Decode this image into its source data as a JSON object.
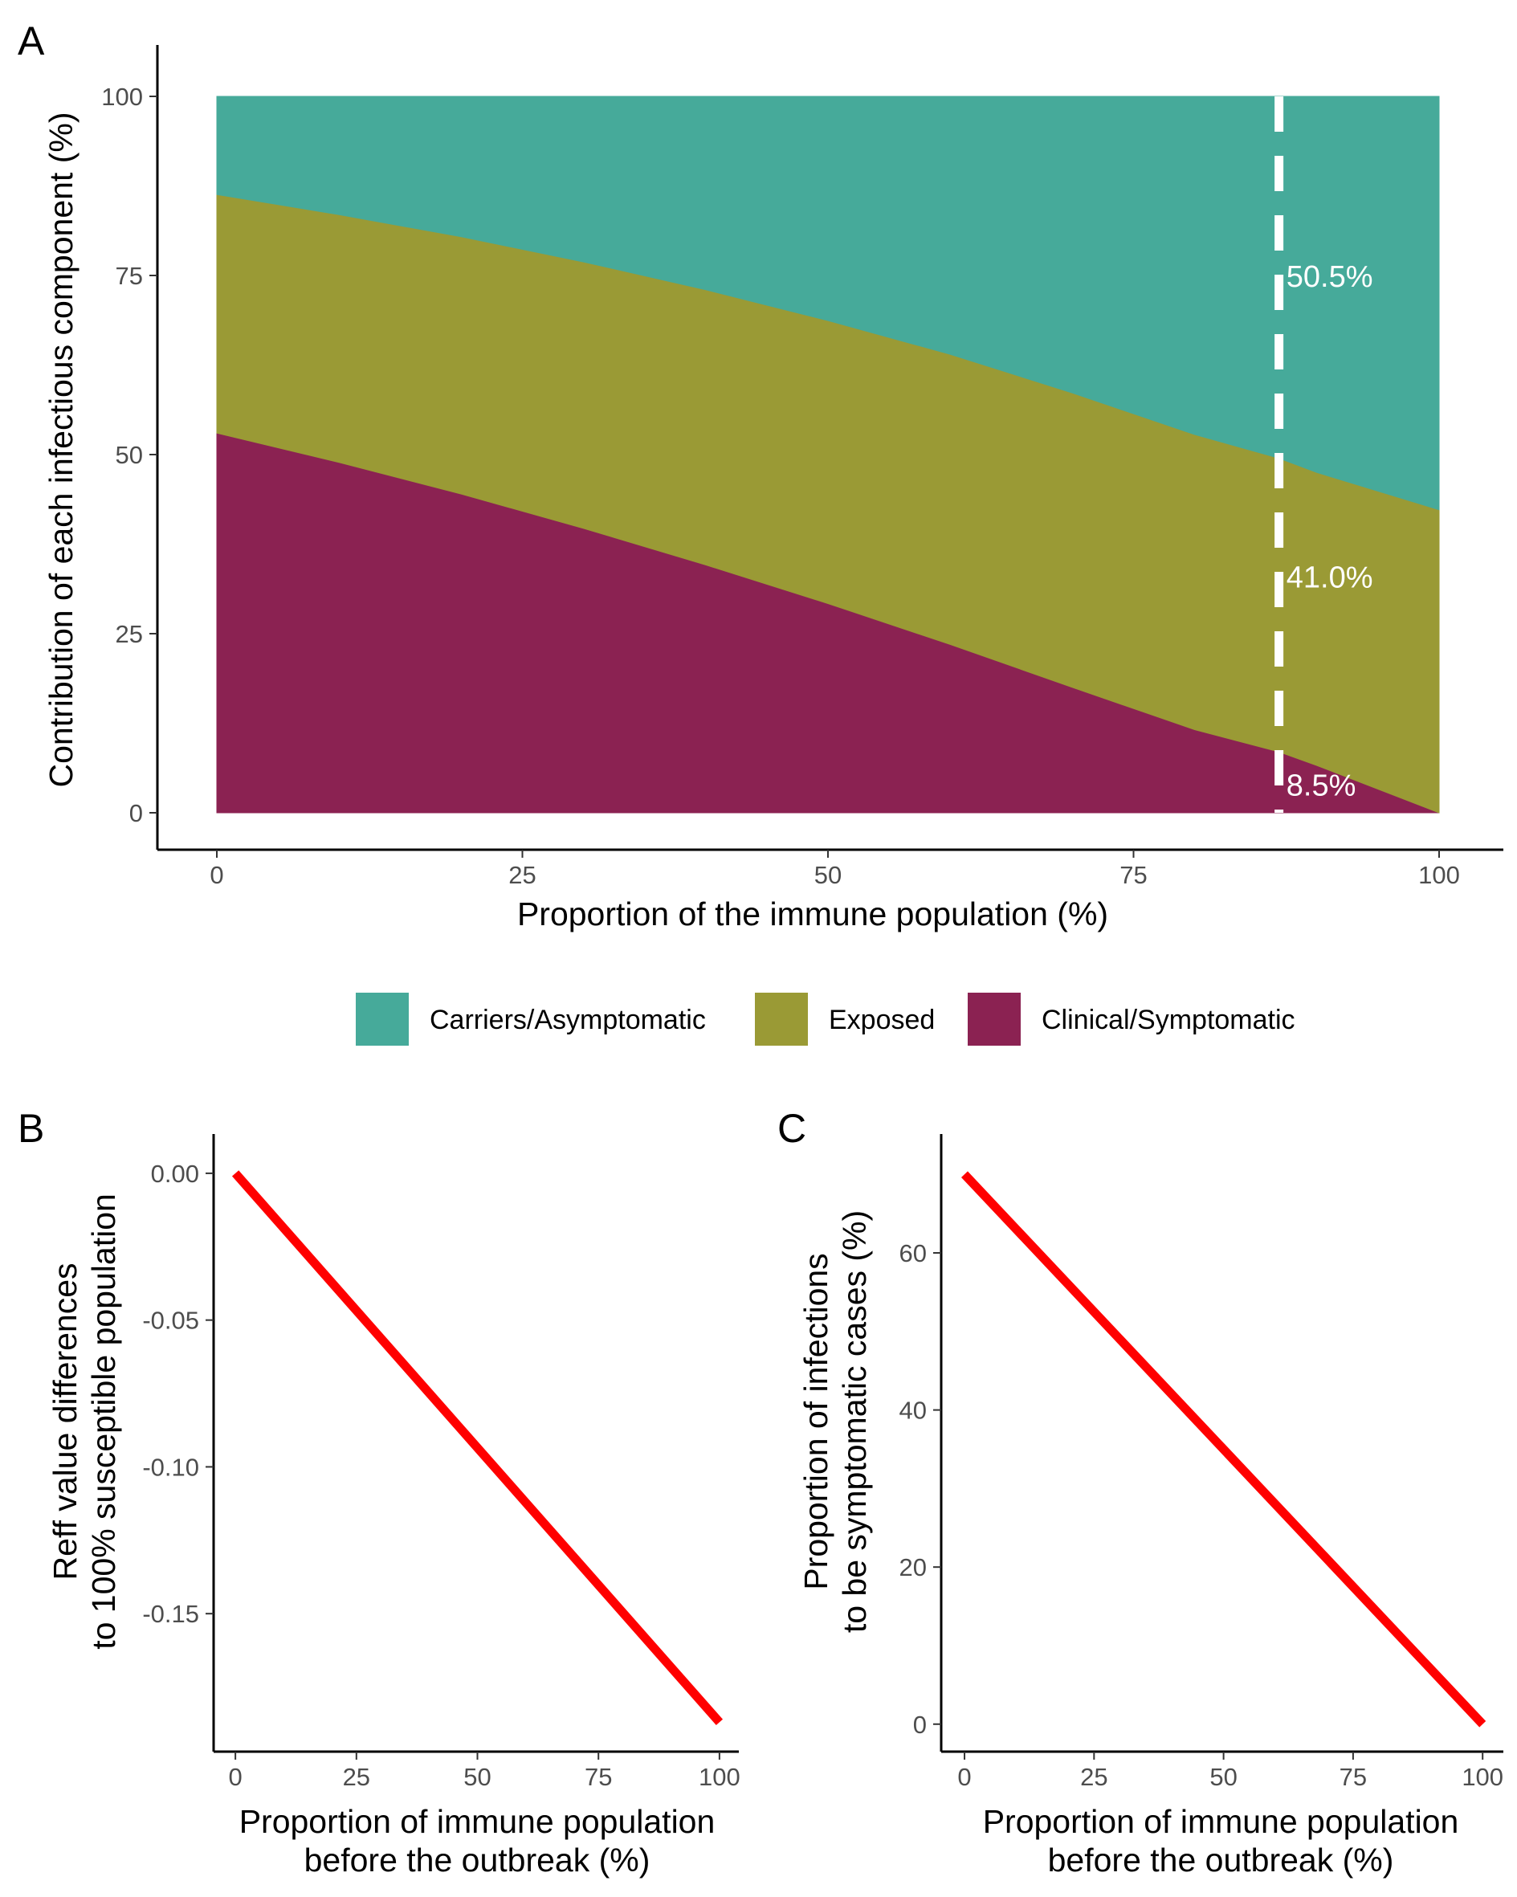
{
  "chart_data": [
    {
      "panel": "A",
      "type": "area",
      "stacked": true,
      "xlabel": "Proportion of the immune population (%)",
      "ylabel": "Contribution of each infectious component (%)",
      "xlim": [
        0,
        100
      ],
      "ylim": [
        0,
        100
      ],
      "x_ticks": [
        0,
        25,
        50,
        75,
        100
      ],
      "y_ticks": [
        0,
        25,
        50,
        75,
        100
      ],
      "x_tick_labels": [
        "0",
        "25",
        "50",
        "75",
        "100"
      ],
      "y_tick_labels": [
        "0",
        "25",
        "50",
        "75",
        "100"
      ],
      "x": [
        0,
        10,
        20,
        30,
        40,
        50,
        60,
        70,
        80,
        86.9,
        90,
        100
      ],
      "series": [
        {
          "name": "Clinical/Symptomatic",
          "color": "#8B2252",
          "values": [
            53.0,
            48.9,
            44.5,
            39.7,
            34.6,
            29.2,
            23.5,
            17.5,
            11.6,
            8.5,
            6.6,
            0.0
          ]
        },
        {
          "name": "Exposed",
          "color": "#9A9A35",
          "values": [
            33.3,
            34.6,
            35.9,
            37.2,
            38.4,
            39.5,
            40.5,
            41.1,
            41.2,
            41.0,
            40.9,
            42.3
          ]
        },
        {
          "name": "Carriers/Asymptomatic",
          "color": "#46AA9A",
          "values": [
            13.7,
            16.5,
            19.6,
            23.1,
            27.0,
            31.3,
            36.0,
            41.4,
            47.2,
            50.5,
            52.5,
            57.7
          ]
        }
      ],
      "reference_line": {
        "x": 86.9,
        "style": "dashed",
        "color": "#ffffff"
      },
      "annotations": [
        {
          "text": "50.5%",
          "x": 87.5,
          "y": 75
        },
        {
          "text": "41.0%",
          "x": 87.5,
          "y": 33
        },
        {
          "text": "8.5%",
          "x": 87.5,
          "y": 4
        }
      ],
      "legend": {
        "placement": "bottom",
        "entries": [
          {
            "label": "Carriers/Asymptomatic",
            "color": "#46AA9A"
          },
          {
            "label": "Exposed",
            "color": "#9A9A35"
          },
          {
            "label": "Clinical/Symptomatic",
            "color": "#8B2252"
          }
        ]
      },
      "grid": false
    },
    {
      "panel": "B",
      "type": "line",
      "xlabel": [
        "Proportion of immune population",
        "before the outbreak (%)"
      ],
      "ylabel": [
        "Reff value differences",
        "to 100% susceptible population"
      ],
      "xlim": [
        -4.5,
        104
      ],
      "ylim": [
        -0.197,
        0.009
      ],
      "x_ticks": [
        0,
        25,
        50,
        75,
        100
      ],
      "y_ticks": [
        0.0,
        -0.05,
        -0.1,
        -0.15
      ],
      "x_tick_labels": [
        "0",
        "25",
        "50",
        "75",
        "100"
      ],
      "y_tick_labels": [
        "0.00",
        "-0.05",
        "-0.10",
        "-0.15"
      ],
      "series": [
        {
          "color": "#FF0000",
          "x": [
            0,
            100
          ],
          "values": [
            0.0,
            -0.187
          ]
        }
      ],
      "grid": false
    },
    {
      "panel": "C",
      "type": "line",
      "xlabel": [
        "Proportion of immune population",
        "before the outbreak (%)"
      ],
      "ylabel": [
        "Proportion of infections",
        "to be symptomatic cases (%)"
      ],
      "xlim": [
        -4.5,
        104
      ],
      "ylim": [
        -3.5,
        73.5
      ],
      "x_ticks": [
        0,
        25,
        50,
        75,
        100
      ],
      "y_ticks": [
        0,
        20,
        40,
        60
      ],
      "x_tick_labels": [
        "0",
        "25",
        "50",
        "75",
        "100"
      ],
      "y_tick_labels": [
        "0",
        "20",
        "40",
        "60"
      ],
      "series": [
        {
          "color": "#FF0000",
          "x": [
            0,
            100
          ],
          "values": [
            70,
            0
          ]
        }
      ],
      "grid": false
    }
  ]
}
